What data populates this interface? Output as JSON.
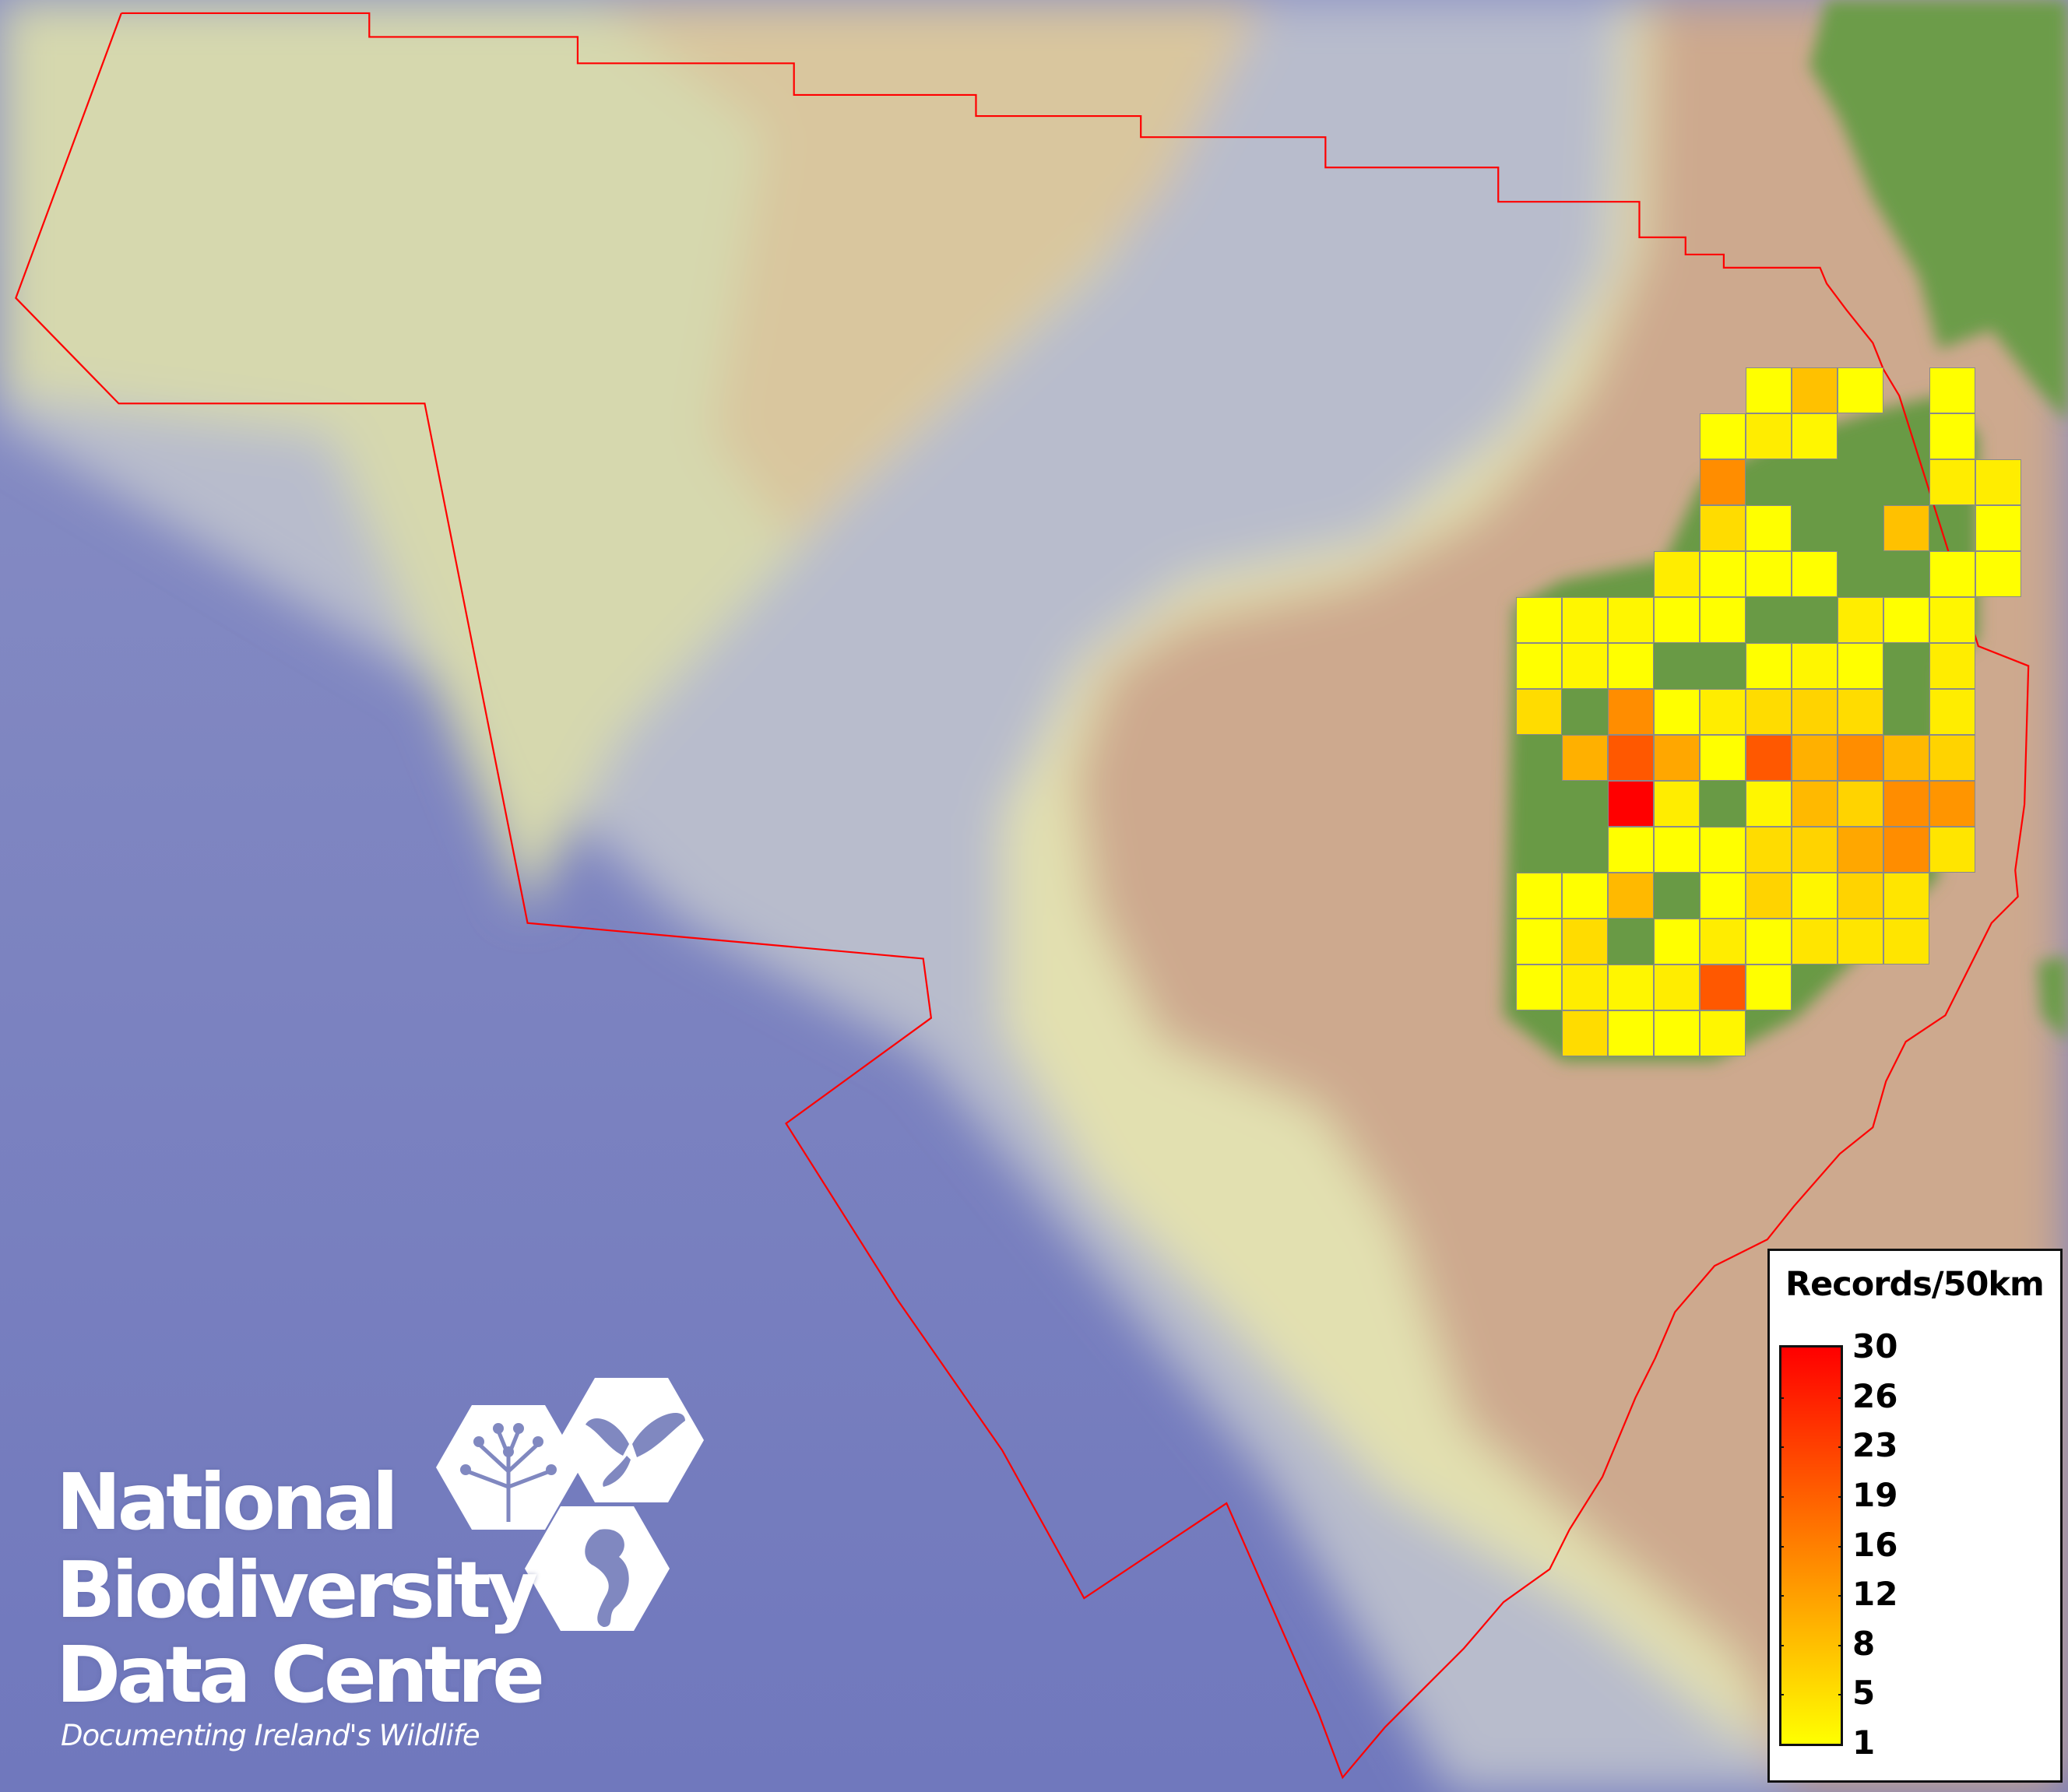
{
  "map": {
    "colors": {
      "deep_ocean": "#7b82c0",
      "slope": "#b9bccb",
      "shelf": "#dcdcb0",
      "land_shelf": "#cda98e",
      "land": "#6a9b46",
      "boundary": "#ff0000",
      "grid_border": "#8a8a8a"
    },
    "grid": {
      "columns": 11,
      "values": [
        [
          0,
          0,
          0,
          0,
          0,
          1,
          8,
          1,
          0,
          1,
          0
        ],
        [
          0,
          0,
          0,
          0,
          1,
          3,
          2,
          0,
          0,
          1,
          0
        ],
        [
          0,
          0,
          0,
          0,
          14,
          0,
          0,
          0,
          0,
          3,
          3
        ],
        [
          0,
          0,
          0,
          0,
          5,
          1,
          0,
          0,
          8,
          0,
          1
        ],
        [
          0,
          0,
          0,
          3,
          1,
          1,
          1,
          0,
          0,
          1,
          1
        ],
        [
          1,
          2,
          2,
          1,
          1,
          0,
          0,
          3,
          1,
          2,
          0
        ],
        [
          1,
          2,
          1,
          0,
          0,
          1,
          2,
          1,
          0,
          3,
          0
        ],
        [
          5,
          0,
          14,
          1,
          3,
          5,
          6,
          5,
          0,
          3,
          0
        ],
        [
          0,
          10,
          20,
          11,
          1,
          20,
          10,
          14,
          9,
          6,
          0
        ],
        [
          0,
          0,
          30,
          3,
          0,
          2,
          9,
          6,
          14,
          13,
          0
        ],
        [
          0,
          0,
          1,
          1,
          1,
          5,
          6,
          11,
          14,
          4,
          0
        ],
        [
          1,
          1,
          9,
          0,
          1,
          6,
          2,
          6,
          4,
          0,
          0
        ],
        [
          1,
          5,
          0,
          1,
          3,
          1,
          4,
          4,
          4,
          0,
          0
        ],
        [
          1,
          3,
          2,
          3,
          20,
          1,
          0,
          0,
          0,
          0,
          0
        ],
        [
          0,
          5,
          1,
          1,
          2,
          0,
          0,
          0,
          0,
          0,
          0
        ]
      ]
    }
  },
  "legend": {
    "title": "Records/50km",
    "min": 1,
    "max": 30,
    "color_low": "#ffff00",
    "color_high": "#ff0000",
    "ticks": [
      "30",
      "26",
      "23",
      "19",
      "16",
      "12",
      "8",
      "5",
      "1"
    ]
  },
  "logo": {
    "line1": "National",
    "line2": "Biodiversity",
    "line3": "Data Centre",
    "tagline": "Documenting Ireland's Wildlife",
    "icons": [
      "tree-icon",
      "butterfly-icon",
      "seahorse-icon"
    ]
  }
}
